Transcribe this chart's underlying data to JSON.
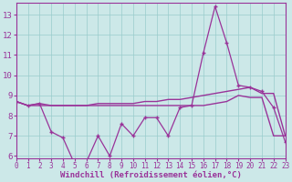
{
  "x": [
    0,
    1,
    2,
    3,
    4,
    5,
    6,
    7,
    8,
    9,
    10,
    11,
    12,
    13,
    14,
    15,
    16,
    17,
    18,
    19,
    20,
    21,
    22,
    23
  ],
  "line1_main": [
    8.7,
    8.5,
    8.6,
    7.2,
    6.9,
    5.6,
    5.7,
    7.0,
    6.0,
    7.6,
    7.0,
    7.9,
    7.9,
    7.0,
    8.4,
    8.5,
    11.1,
    13.4,
    11.6,
    9.5,
    9.4,
    9.2,
    8.4,
    6.7
  ],
  "line2_upper": [
    8.7,
    8.5,
    8.6,
    8.5,
    8.5,
    8.5,
    8.5,
    8.6,
    8.6,
    8.6,
    8.6,
    8.7,
    8.7,
    8.8,
    8.8,
    8.9,
    9.0,
    9.1,
    9.2,
    9.3,
    9.4,
    9.1,
    9.1,
    7.0
  ],
  "line3_lower": [
    8.7,
    8.5,
    8.5,
    8.5,
    8.5,
    8.5,
    8.5,
    8.5,
    8.5,
    8.5,
    8.5,
    8.5,
    8.5,
    8.5,
    8.5,
    8.5,
    8.5,
    8.6,
    8.7,
    9.0,
    8.9,
    8.9,
    7.0,
    7.0
  ],
  "line_color": "#993399",
  "bg_color": "#cce8e8",
  "grid_color": "#99cccc",
  "xlabel": "Windchill (Refroidissement éolien,°C)",
  "xlim": [
    0,
    23
  ],
  "ylim": [
    5.9,
    13.6
  ],
  "yticks": [
    6,
    7,
    8,
    9,
    10,
    11,
    12,
    13
  ],
  "xticks": [
    0,
    1,
    2,
    3,
    4,
    5,
    6,
    7,
    8,
    9,
    10,
    11,
    12,
    13,
    14,
    15,
    16,
    17,
    18,
    19,
    20,
    21,
    22,
    23
  ],
  "tick_fontsize": 5.5,
  "label_fontsize": 6.5
}
